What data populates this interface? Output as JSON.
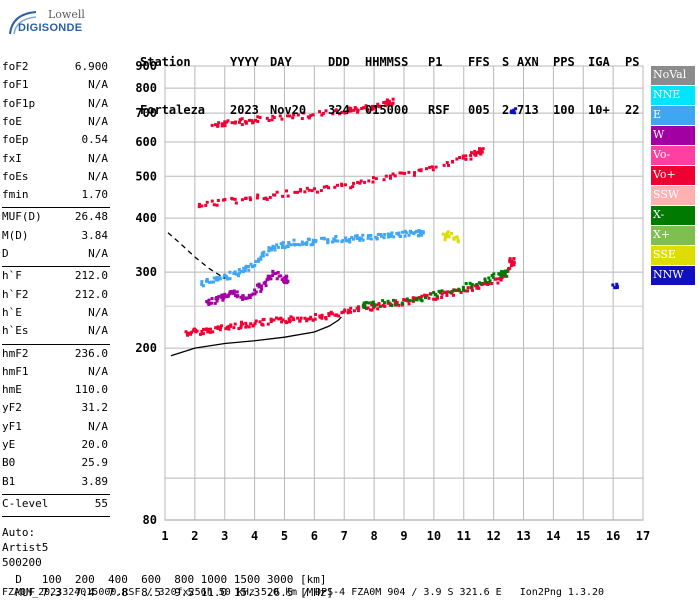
{
  "logo": {
    "line1": "Lowell",
    "line2": "DIGISONDE"
  },
  "header": {
    "labels": [
      "Station",
      "YYYY",
      "DAY",
      "DDD",
      "HHMMSS",
      "P1",
      "FFS",
      "S",
      "AXN",
      "PPS",
      "IGA",
      "PS"
    ],
    "values": [
      "Fortaleza",
      "2023",
      "Nov20",
      "324",
      "015000",
      "RSF",
      "005",
      "2",
      "713",
      "100",
      "10+",
      "22"
    ]
  },
  "params_group1": [
    {
      "name": "foF2",
      "value": "6.900"
    },
    {
      "name": "foF1",
      "value": "N/A"
    },
    {
      "name": "foF1p",
      "value": "N/A"
    },
    {
      "name": "foE",
      "value": "N/A"
    },
    {
      "name": "foEp",
      "value": "0.54"
    },
    {
      "name": "fxI",
      "value": "N/A"
    },
    {
      "name": "foEs",
      "value": "N/A"
    },
    {
      "name": "fmin",
      "value": "1.70"
    }
  ],
  "params_group2": [
    {
      "name": "MUF(D)",
      "value": "26.48"
    },
    {
      "name": "M(D)",
      "value": "3.84"
    },
    {
      "name": "D",
      "value": "N/A"
    }
  ],
  "params_group3": [
    {
      "name": "h`F",
      "value": "212.0"
    },
    {
      "name": "h`F2",
      "value": "212.0"
    },
    {
      "name": "h`E",
      "value": "N/A"
    },
    {
      "name": "h`Es",
      "value": "N/A"
    }
  ],
  "params_group4": [
    {
      "name": "hmF2",
      "value": "236.0"
    },
    {
      "name": "hmF1",
      "value": "N/A"
    },
    {
      "name": "hmE",
      "value": "110.0"
    },
    {
      "name": "yF2",
      "value": "31.2"
    },
    {
      "name": "yF1",
      "value": "N/A"
    },
    {
      "name": "yE",
      "value": "20.0"
    },
    {
      "name": "B0",
      "value": "25.9"
    },
    {
      "name": "B1",
      "value": "3.89"
    }
  ],
  "clevel": {
    "name": "C-level",
    "value": "55"
  },
  "auto": {
    "line1": "Auto:",
    "line2": "Artist5",
    "line3": "500200"
  },
  "legend": [
    {
      "label": "NoVal",
      "color": "#8c8c8c"
    },
    {
      "label": "NNE",
      "color": "#00e5ff"
    },
    {
      "label": "E",
      "color": "#3ea6f2"
    },
    {
      "label": "W",
      "color": "#a200a2"
    },
    {
      "label": "Vo-",
      "color": "#ff40a0"
    },
    {
      "label": "Vo+",
      "color": "#ee0033"
    },
    {
      "label": "SSW",
      "color": "#ffb0b0"
    },
    {
      "label": "X-",
      "color": "#007a00"
    },
    {
      "label": "X+",
      "color": "#7fbf50"
    },
    {
      "label": "SSE",
      "color": "#dddd00"
    },
    {
      "label": "NNW",
      "color": "#1010c0"
    }
  ],
  "footer": {
    "d_label": "D",
    "d_values": "   100  200  400  600  800 1000 1500 3000 [km]",
    "muf_label": "MUF",
    "muf_values": " 7.3  7.4  7.8  8.5  9.5 11.0 15.3 26.5 [MHz]",
    "line3": "FZA0M_2023324015000.RSF / 320fx256h 50 kHz 5.0 km / DPS-4 FZA0M 904 / 3.9 S 321.6 E   Ion2Png 1.3.20"
  },
  "chart_data": {
    "type": "scatter",
    "title": "",
    "xlabel": "",
    "ylabel": "",
    "xlim": [
      1,
      17
    ],
    "ylim": [
      80,
      900
    ],
    "x_ticks": [
      1,
      2,
      3,
      4,
      5,
      6,
      7,
      8,
      9,
      10,
      11,
      12,
      13,
      14,
      15,
      16,
      17
    ],
    "y_ticks": [
      80,
      200,
      300,
      400,
      500,
      600,
      700,
      800,
      900
    ],
    "y_scale": "log",
    "grid": true,
    "series": [
      {
        "name": "Vo+",
        "x": [
          1.7,
          2.0,
          2.5,
          3.0,
          3.5,
          4.0,
          4.5,
          5.0,
          5.5,
          6.0,
          6.5,
          7.0,
          7.5,
          8.0,
          8.5,
          9.0,
          9.5,
          10.0,
          10.5,
          11.0,
          11.5,
          12.0,
          12.4,
          12.6
        ],
        "y": [
          218,
          220,
          222,
          225,
          228,
          230,
          232,
          234,
          236,
          238,
          240,
          244,
          248,
          252,
          255,
          258,
          262,
          266,
          270,
          275,
          280,
          288,
          300,
          320
        ]
      },
      {
        "name": "W",
        "x": [
          2.3,
          2.7,
          3.0,
          3.3,
          3.6,
          4.0,
          4.3,
          4.6,
          5.0
        ],
        "y": [
          255,
          262,
          268,
          270,
          262,
          275,
          285,
          300,
          290
        ]
      },
      {
        "name": "E",
        "x": [
          2.2,
          2.6,
          3.0,
          3.4,
          3.8,
          4.2,
          4.6,
          5.0,
          5.5,
          6.0,
          6.5,
          7.0,
          7.5,
          8.0,
          8.5,
          9.0,
          9.5
        ],
        "y": [
          285,
          290,
          295,
          300,
          310,
          330,
          345,
          350,
          355,
          355,
          360,
          360,
          362,
          365,
          368,
          370,
          372
        ]
      },
      {
        "name": "X-",
        "x": [
          7.5,
          8.0,
          9.0,
          10.0,
          11.0,
          11.8,
          12.3
        ],
        "y": [
          252,
          255,
          258,
          268,
          280,
          290,
          300
        ]
      },
      {
        "name": "Vo+",
        "x": [
          2.0,
          3.0,
          4.0,
          5.0,
          6.0,
          7.0,
          8.0,
          9.0,
          10.0,
          11.0,
          11.5
        ],
        "y": [
          432,
          440,
          448,
          458,
          468,
          480,
          495,
          510,
          528,
          555,
          575
        ]
      },
      {
        "name": "Vo+",
        "x": [
          2.6,
          3.0,
          3.5,
          4.0,
          5.0,
          6.0,
          7.0,
          7.5,
          8.0,
          8.5
        ],
        "y": [
          655,
          665,
          675,
          680,
          692,
          700,
          712,
          720,
          735,
          748
        ]
      },
      {
        "name": "SSE",
        "x": [
          10.3,
          10.5,
          10.7
        ],
        "y": [
          365,
          370,
          360
        ]
      },
      {
        "name": "NNW",
        "x": [
          12.6,
          16.0
        ],
        "y": [
          712,
          282
        ]
      }
    ],
    "profile_line": {
      "x": [
        1.2,
        2.0,
        3.0,
        4.0,
        5.0,
        6.0,
        6.5,
        6.8,
        6.9
      ],
      "y": [
        192,
        200,
        205,
        208,
        212,
        218,
        225,
        232,
        236
      ]
    },
    "profile_dashed": {
      "x": [
        1.1,
        1.5,
        2.0,
        2.5,
        3.0
      ],
      "y": [
        370,
        350,
        325,
        305,
        290
      ]
    }
  }
}
